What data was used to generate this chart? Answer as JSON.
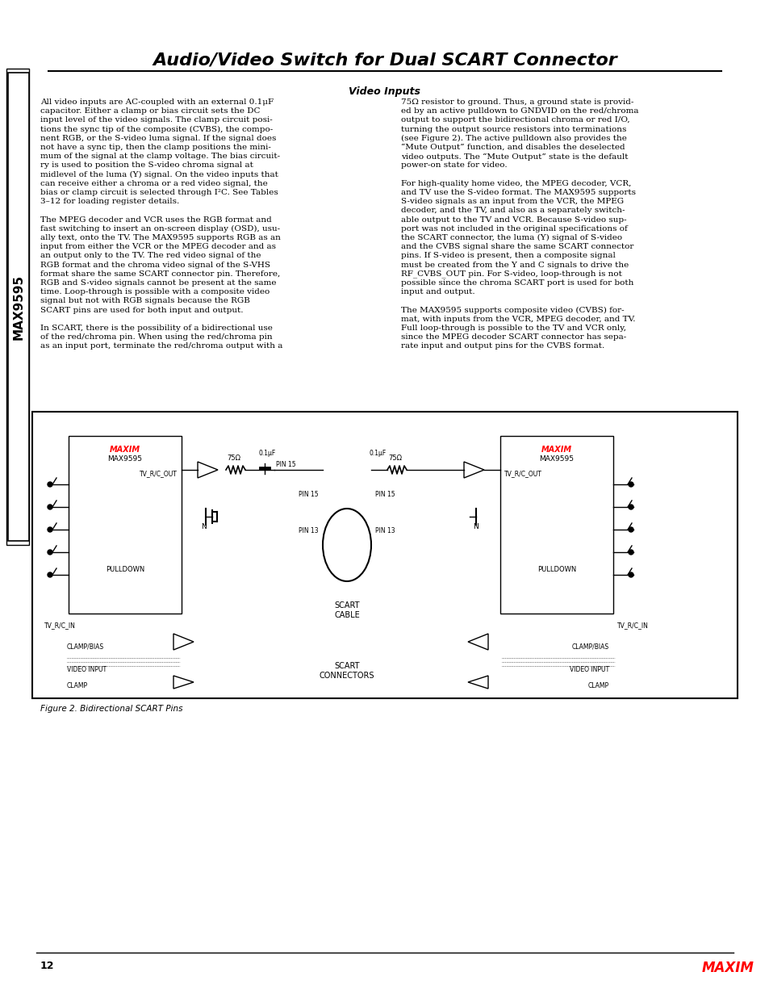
{
  "title": "Audio/Video Switch for Dual SCART Connector",
  "subtitle": "Video Inputs",
  "page_number": "12",
  "figure_caption": "Figure 2. Bidirectional SCART Pins",
  "bg_color": "#ffffff",
  "text_color": "#000000",
  "body_text_left": [
    "All video inputs are AC-coupled with an external 0.1μF",
    "capacitor. Either a clamp or bias circuit sets the DC",
    "input level of the video signals. The clamp circuit posi-",
    "tions the sync tip of the composite (CVBS), the compo-",
    "nent RGB, or the S-video luma signal. If the signal does",
    "not have a sync tip, then the clamp positions the mini-",
    "mum of the signal at the clamp voltage. The bias circuit-",
    "ry is used to position the S-video chroma signal at",
    "midlevel of the luma (Y) signal. On the video inputs that",
    "can receive either a chroma or a red video signal, the",
    "bias or clamp circuit is selected through I²C. See Tables",
    "3–12 for loading register details.",
    "",
    "The MPEG decoder and VCR uses the RGB format and",
    "fast switching to insert an on-screen display (OSD), usu-",
    "ally text, onto the TV. The MAX9595 supports RGB as an",
    "input from either the VCR or the MPEG decoder and as",
    "an output only to the TV. The red video signal of the",
    "RGB format and the chroma video signal of the S-VHS",
    "format share the same SCART connector pin. Therefore,",
    "RGB and S-video signals cannot be present at the same",
    "time. Loop-through is possible with a composite video",
    "signal but not with RGB signals because the RGB",
    "SCART pins are used for both input and output.",
    "",
    "In SCART, there is the possibility of a bidirectional use",
    "of the red/chroma pin. When using the red/chroma pin",
    "as an input port, terminate the red/chroma output with a"
  ],
  "body_text_right": [
    "75Ω resistor to ground. Thus, a ground state is provid-",
    "ed by an active pulldown to GNDVID on the red/chroma",
    "output to support the bidirectional chroma or red I/O,",
    "turning the output source resistors into terminations",
    "(see Figure 2). The active pulldown also provides the",
    "“Mute Output” function, and disables the deselected",
    "video outputs. The “Mute Output” state is the default",
    "power-on state for video.",
    "",
    "For high-quality home video, the MPEG decoder, VCR,",
    "and TV use the S-video format. The MAX9595 supports",
    "S-video signals as an input from the VCR, the MPEG",
    "decoder, and the TV, and also as a separately switch-",
    "able output to the TV and VCR. Because S-video sup-",
    "port was not included in the original specifications of",
    "the SCART connector, the luma (Y) signal of S-video",
    "and the CVBS signal share the same SCART connector",
    "pins. If S-video is present, then a composite signal",
    "must be created from the Y and C signals to drive the",
    "RF_CVBS_OUT pin. For S-video, loop-through is not",
    "possible since the chroma SCART port is used for both",
    "input and output.",
    "",
    "The MAX9595 supports composite video (CVBS) for-",
    "mat, with inputs from the VCR, MPEG decoder, and TV.",
    "Full loop-through is possible to the TV and VCR only,",
    "since the MPEG decoder SCART connector has sepa-",
    "rate input and output pins for the CVBS format."
  ],
  "sidebar_text": "MAX9595",
  "maxim_logo_text": "MAXIM",
  "font_size_body": 7.5,
  "font_size_title": 16,
  "font_size_subtitle": 9,
  "diagram_box_color": "#f0f0f0",
  "diagram_border_color": "#000000"
}
